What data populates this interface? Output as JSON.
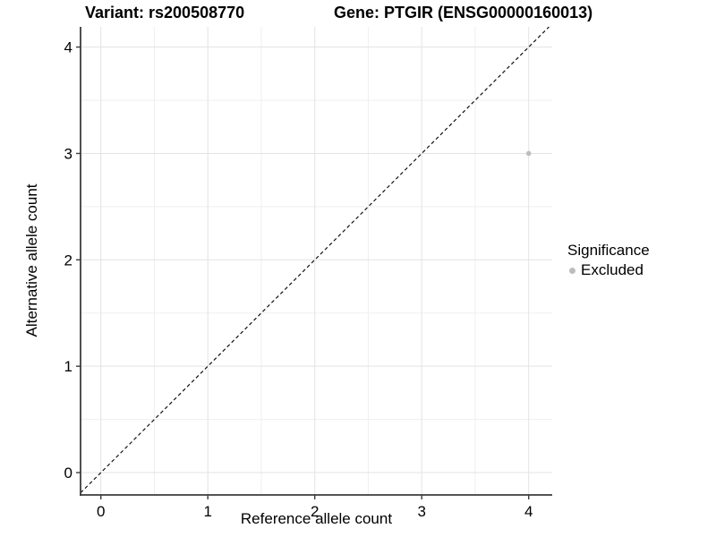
{
  "titles": {
    "variant": "Variant: rs200508770",
    "gene": "Gene: PTGIR (ENSG00000160013)"
  },
  "legend": {
    "title": "Significance",
    "items": [
      {
        "label": "Excluded",
        "color": "#bdbdbd"
      }
    ]
  },
  "colors": {
    "background": "#ffffff",
    "grid_major": "#e3e3e3",
    "grid_minor": "#efefef",
    "axis_line": "#3c3c3c",
    "tick_mark": "#3c3c3c",
    "text": "#000000",
    "point": "#bdbdbd",
    "reference_line": "#111111"
  },
  "chart_data": {
    "type": "scatter",
    "title": "Variant: rs200508770 — Gene: PTGIR (ENSG00000160013)",
    "xlabel": "Reference allele count",
    "ylabel": "Alternative allele count",
    "xlim": [
      -0.19,
      4.22
    ],
    "ylim": [
      -0.21,
      4.19
    ],
    "x_ticks": [
      0,
      1,
      2,
      3,
      4
    ],
    "y_ticks": [
      0,
      1,
      2,
      3,
      4
    ],
    "minor_grid_step": 0.5,
    "grid": true,
    "legend_position": "right",
    "series": [
      {
        "name": "Excluded",
        "color": "#bdbdbd",
        "points": [
          {
            "x": 4,
            "y": 3
          }
        ]
      }
    ],
    "reference_line": {
      "equation": "y = x",
      "style": "dashed",
      "color": "#111111"
    }
  }
}
